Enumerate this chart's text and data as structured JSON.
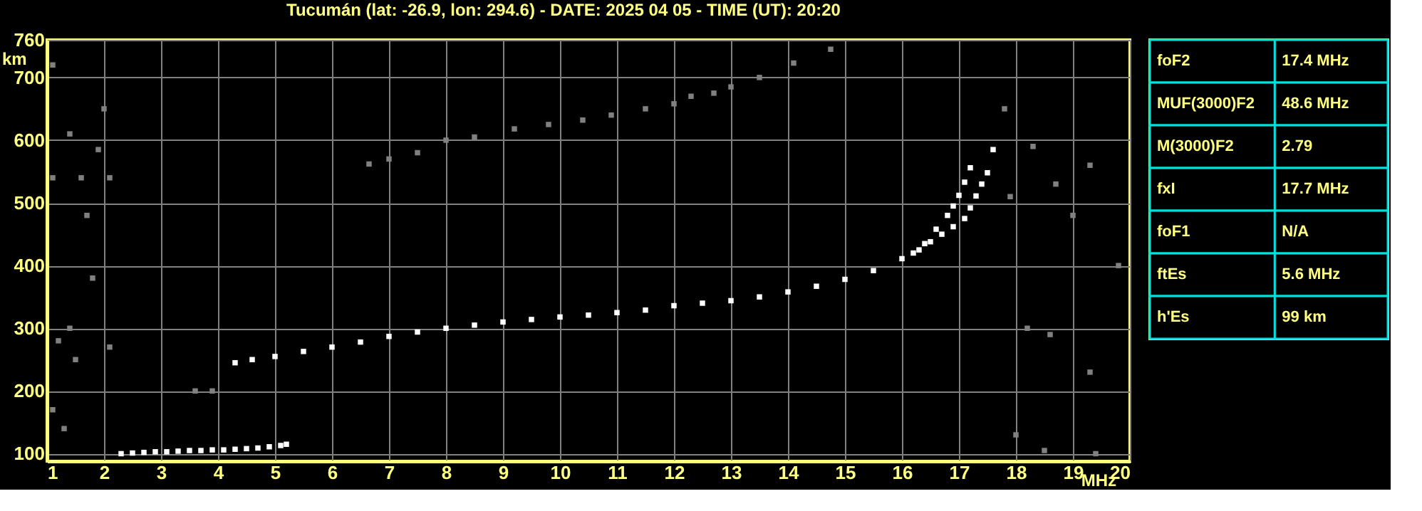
{
  "chart_data": [
    {
      "type": "scatter",
      "title": "Tucumán (lat: -26.9, lon: 294.6) - DATE: 2025 04 05 - TIME (UT): 20:20",
      "xlabel": "MHz",
      "ylabel": "km",
      "marker": "square",
      "grid": true,
      "xlim": [
        1,
        20
      ],
      "xticks": [
        1,
        2,
        3,
        4,
        5,
        6,
        7,
        8,
        9,
        10,
        11,
        12,
        13,
        14,
        15,
        16,
        17,
        18,
        19,
        20
      ],
      "ylim": [
        88,
        760
      ],
      "yticks": [
        100,
        200,
        300,
        400,
        500,
        600,
        700,
        760
      ],
      "series": [
        {
          "color": "#ffffff",
          "x": [
            4.3,
            4.6,
            5,
            5.5,
            6,
            6.5,
            7,
            7.5,
            8,
            8.5,
            9,
            9.5,
            10,
            10.5,
            11,
            11.5,
            12,
            12.5,
            13,
            13.5,
            14,
            14.5,
            15,
            15.5,
            16,
            16.2,
            16.4,
            16.6,
            16.8,
            16.9,
            17.0,
            17.1,
            17.2
          ],
          "values": [
            245,
            250,
            255,
            263,
            270,
            278,
            287,
            294,
            300,
            305,
            310,
            314,
            318,
            321,
            325,
            329,
            336,
            340,
            344,
            350,
            358,
            367,
            378,
            392,
            411,
            420,
            435,
            458,
            480,
            495,
            512,
            533,
            556
          ]
        },
        {
          "color": "#ffffff",
          "x": [
            16.3,
            16.5,
            16.7,
            16.9,
            17.1,
            17.2,
            17.3,
            17.4,
            17.5,
            17.6
          ],
          "values": [
            425,
            438,
            450,
            462,
            475,
            492,
            511,
            530,
            548,
            585
          ]
        },
        {
          "color": "#ffffff",
          "x": [
            2.3,
            2.5,
            2.7,
            2.9,
            3.1,
            3.3,
            3.5,
            3.7,
            3.9,
            4.1,
            4.3,
            4.5,
            4.7,
            4.9,
            5.1,
            5.2
          ],
          "values": [
            100,
            101,
            102,
            103,
            103,
            104,
            105,
            105,
            106,
            106,
            107,
            108,
            109,
            111,
            113,
            115
          ]
        },
        {
          "color": "#808080",
          "x": [
            6.65,
            7.0,
            7.5,
            8.0,
            8.5,
            9.2,
            9.8,
            10.4,
            10.9,
            11.5,
            12.0,
            12.3,
            12.7,
            13.0,
            13.5,
            14.1,
            14.75
          ],
          "values": [
            562,
            570,
            580,
            600,
            605,
            618,
            625,
            632,
            640,
            650,
            658,
            670,
            675,
            685,
            700,
            723,
            745
          ]
        },
        {
          "color": "#808080",
          "x": [
            1.1,
            1.1,
            1.4,
            1.6,
            1.7,
            1.9,
            2.0,
            2.1,
            1.4,
            1.2,
            1.5,
            1.8,
            2.1,
            1.1,
            1.3,
            3.6,
            3.9,
            17.8,
            18.3,
            18.7,
            19.0,
            19.3,
            18.2,
            18.6,
            19.3,
            18.0,
            18.5,
            19.4,
            17.9,
            19.8
          ],
          "values": [
            720,
            540,
            610,
            540,
            480,
            585,
            650,
            540,
            300,
            280,
            250,
            380,
            270,
            170,
            140,
            200,
            200,
            650,
            590,
            530,
            480,
            560,
            300,
            290,
            230,
            130,
            105,
            100,
            510,
            400
          ]
        }
      ]
    },
    {
      "type": "other",
      "annotations": [
        "foF2",
        "17.4 MHz",
        "MUF(3000)F2",
        "48.6 MHz",
        "M(3000)F2",
        "2.79",
        "fxI",
        "17.7 MHz",
        "foF1",
        "N/A",
        "ftEs",
        "5.6 MHz",
        "h'Es",
        "99 km"
      ]
    }
  ]
}
